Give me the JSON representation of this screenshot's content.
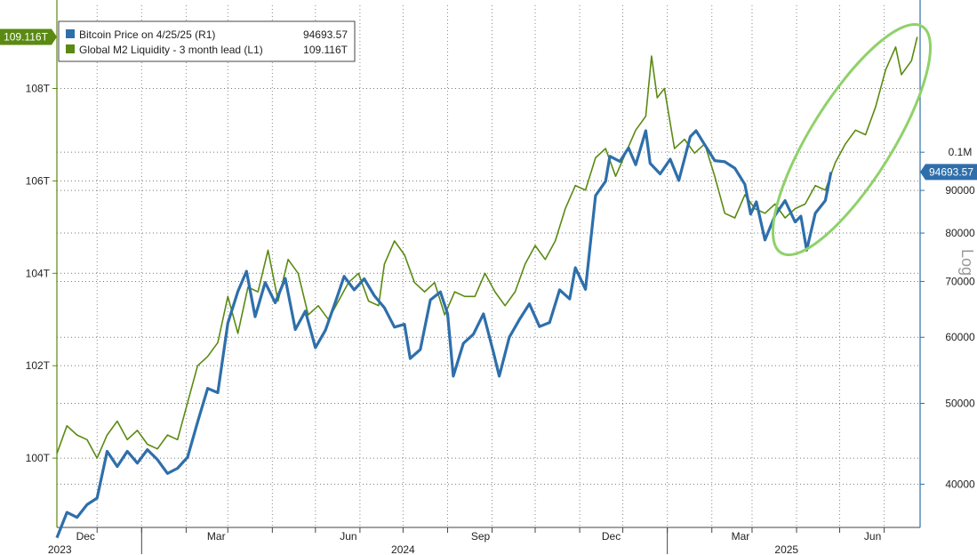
{
  "chart_data": {
    "type": "line",
    "title": "",
    "legend_placement": "top-left",
    "grid": true,
    "colors": {
      "btc": "#2e6fab",
      "m2": "#5a8a12",
      "ellipse": "#8fd16a"
    },
    "left_axis": {
      "label": "",
      "range": [
        98.5,
        109.8
      ],
      "ticks": [
        100,
        102,
        104,
        106,
        108
      ],
      "tick_labels": [
        "100T",
        "102T",
        "104T",
        "106T",
        "108T"
      ],
      "current_label": "109.116T",
      "current_value": 109.116
    },
    "right_axis": {
      "label": "Log",
      "scale": "log",
      "range": [
        35500,
        150000
      ],
      "ticks": [
        40000,
        50000,
        60000,
        70000,
        80000,
        90000,
        100000
      ],
      "tick_labels": [
        "40000",
        "50000",
        "60000",
        "70000",
        "80000",
        "90000",
        "0.1M"
      ],
      "current_label": "94693.57",
      "current_value": 94693.57
    },
    "x_axis": {
      "month_labels": [
        "Dec",
        "Mar",
        "Jun",
        "Sep",
        "Dec",
        "Mar",
        "Jun"
      ],
      "month_dates": [
        "2023-12-01",
        "2024-03-01",
        "2024-06-01",
        "2024-09-01",
        "2024-12-01",
        "2025-03-01",
        "2025-06-01"
      ],
      "year_labels": [
        "2023",
        "2024",
        "2025"
      ],
      "year_dates": [
        "2023-11-05",
        "2024-07-01",
        "2025-03-25"
      ],
      "start": "2023-11-03",
      "end": "2025-06-26"
    },
    "series": [
      {
        "name": "Bitcoin Price on 4/25/25 (R1)",
        "legend_value": "94693.57",
        "axis": "right",
        "points": [
          [
            "2023-11-03",
            34500
          ],
          [
            "2023-11-10",
            37000
          ],
          [
            "2023-11-17",
            36500
          ],
          [
            "2023-11-24",
            37800
          ],
          [
            "2023-12-01",
            38500
          ],
          [
            "2023-12-08",
            43800
          ],
          [
            "2023-12-15",
            42000
          ],
          [
            "2023-12-22",
            43800
          ],
          [
            "2023-12-29",
            42400
          ],
          [
            "2024-01-05",
            44000
          ],
          [
            "2024-01-12",
            42800
          ],
          [
            "2024-01-19",
            41200
          ],
          [
            "2024-01-26",
            41800
          ],
          [
            "2024-02-02",
            43100
          ],
          [
            "2024-02-09",
            47500
          ],
          [
            "2024-02-16",
            52100
          ],
          [
            "2024-02-23",
            51500
          ],
          [
            "2024-03-01",
            62400
          ],
          [
            "2024-03-08",
            68100
          ],
          [
            "2024-03-14",
            72000
          ],
          [
            "2024-03-20",
            63500
          ],
          [
            "2024-03-27",
            69800
          ],
          [
            "2024-04-03",
            66000
          ],
          [
            "2024-04-10",
            70600
          ],
          [
            "2024-04-17",
            61300
          ],
          [
            "2024-04-24",
            64500
          ],
          [
            "2024-05-01",
            58300
          ],
          [
            "2024-05-08",
            61200
          ],
          [
            "2024-05-15",
            66200
          ],
          [
            "2024-05-21",
            71000
          ],
          [
            "2024-05-28",
            68400
          ],
          [
            "2024-06-04",
            70500
          ],
          [
            "2024-06-11",
            67300
          ],
          [
            "2024-06-18",
            65100
          ],
          [
            "2024-06-25",
            61700
          ],
          [
            "2024-07-02",
            62200
          ],
          [
            "2024-07-06",
            56600
          ],
          [
            "2024-07-13",
            58000
          ],
          [
            "2024-07-20",
            66500
          ],
          [
            "2024-07-27",
            68000
          ],
          [
            "2024-08-01",
            64000
          ],
          [
            "2024-08-05",
            53900
          ],
          [
            "2024-08-12",
            59000
          ],
          [
            "2024-08-19",
            60500
          ],
          [
            "2024-08-26",
            64000
          ],
          [
            "2024-09-02",
            57500
          ],
          [
            "2024-09-06",
            53900
          ],
          [
            "2024-09-13",
            60000
          ],
          [
            "2024-09-20",
            63000
          ],
          [
            "2024-09-27",
            65800
          ],
          [
            "2024-10-04",
            61800
          ],
          [
            "2024-10-11",
            62500
          ],
          [
            "2024-10-18",
            68400
          ],
          [
            "2024-10-25",
            66700
          ],
          [
            "2024-10-29",
            72700
          ],
          [
            "2024-11-05",
            68500
          ],
          [
            "2024-11-08",
            76500
          ],
          [
            "2024-11-12",
            88700
          ],
          [
            "2024-11-19",
            92300
          ],
          [
            "2024-11-22",
            98900
          ],
          [
            "2024-11-29",
            97500
          ],
          [
            "2024-12-05",
            101200
          ],
          [
            "2024-12-10",
            96600
          ],
          [
            "2024-12-17",
            106100
          ],
          [
            "2024-12-20",
            97000
          ],
          [
            "2024-12-27",
            94200
          ],
          [
            "2025-01-03",
            98100
          ],
          [
            "2025-01-09",
            92500
          ],
          [
            "2025-01-17",
            104400
          ],
          [
            "2025-01-21",
            106100
          ],
          [
            "2025-01-27",
            102100
          ],
          [
            "2025-02-03",
            97700
          ],
          [
            "2025-02-10",
            97400
          ],
          [
            "2025-02-17",
            95700
          ],
          [
            "2025-02-24",
            91500
          ],
          [
            "2025-02-28",
            84300
          ],
          [
            "2025-03-04",
            87200
          ],
          [
            "2025-03-10",
            78500
          ],
          [
            "2025-03-17",
            84000
          ],
          [
            "2025-03-24",
            87500
          ],
          [
            "2025-03-31",
            82500
          ],
          [
            "2025-04-04",
            83800
          ],
          [
            "2025-04-08",
            76300
          ],
          [
            "2025-04-14",
            84500
          ],
          [
            "2025-04-21",
            87500
          ],
          [
            "2025-04-25",
            94693.57
          ]
        ]
      },
      {
        "name": "Global M2 Liquidity - 3 month lead (L1)",
        "legend_value": "109.116T",
        "axis": "left",
        "points": [
          [
            "2023-11-03",
            100.1
          ],
          [
            "2023-11-10",
            100.7
          ],
          [
            "2023-11-17",
            100.5
          ],
          [
            "2023-11-24",
            100.4
          ],
          [
            "2023-12-01",
            100.0
          ],
          [
            "2023-12-08",
            100.5
          ],
          [
            "2023-12-15",
            100.8
          ],
          [
            "2023-12-22",
            100.4
          ],
          [
            "2023-12-29",
            100.6
          ],
          [
            "2024-01-05",
            100.3
          ],
          [
            "2024-01-12",
            100.2
          ],
          [
            "2024-01-19",
            100.5
          ],
          [
            "2024-01-26",
            100.4
          ],
          [
            "2024-02-02",
            101.2
          ],
          [
            "2024-02-09",
            102.0
          ],
          [
            "2024-02-16",
            102.2
          ],
          [
            "2024-02-23",
            102.5
          ],
          [
            "2024-03-01",
            103.5
          ],
          [
            "2024-03-08",
            102.7
          ],
          [
            "2024-03-15",
            103.7
          ],
          [
            "2024-03-22",
            103.6
          ],
          [
            "2024-03-29",
            104.5
          ],
          [
            "2024-04-05",
            103.4
          ],
          [
            "2024-04-12",
            104.3
          ],
          [
            "2024-04-19",
            104.0
          ],
          [
            "2024-04-26",
            103.1
          ],
          [
            "2024-05-03",
            103.3
          ],
          [
            "2024-05-10",
            103.0
          ],
          [
            "2024-05-17",
            103.4
          ],
          [
            "2024-05-24",
            103.8
          ],
          [
            "2024-05-31",
            104.0
          ],
          [
            "2024-06-07",
            103.4
          ],
          [
            "2024-06-14",
            103.3
          ],
          [
            "2024-06-18",
            104.2
          ],
          [
            "2024-06-25",
            104.7
          ],
          [
            "2024-07-02",
            104.4
          ],
          [
            "2024-07-09",
            103.8
          ],
          [
            "2024-07-16",
            103.6
          ],
          [
            "2024-07-23",
            103.8
          ],
          [
            "2024-07-30",
            103.1
          ],
          [
            "2024-08-06",
            103.6
          ],
          [
            "2024-08-13",
            103.5
          ],
          [
            "2024-08-20",
            103.5
          ],
          [
            "2024-08-27",
            104.0
          ],
          [
            "2024-09-03",
            103.6
          ],
          [
            "2024-09-10",
            103.3
          ],
          [
            "2024-09-17",
            103.6
          ],
          [
            "2024-09-24",
            104.2
          ],
          [
            "2024-10-01",
            104.6
          ],
          [
            "2024-10-08",
            104.3
          ],
          [
            "2024-10-15",
            104.7
          ],
          [
            "2024-10-22",
            105.4
          ],
          [
            "2024-10-29",
            105.9
          ],
          [
            "2024-11-05",
            105.8
          ],
          [
            "2024-11-12",
            106.5
          ],
          [
            "2024-11-19",
            106.7
          ],
          [
            "2024-11-26",
            106.1
          ],
          [
            "2024-12-03",
            106.6
          ],
          [
            "2024-12-10",
            107.1
          ],
          [
            "2024-12-17",
            107.4
          ],
          [
            "2024-12-21",
            108.7
          ],
          [
            "2024-12-25",
            107.8
          ],
          [
            "2024-12-30",
            108.0
          ],
          [
            "2025-01-06",
            106.7
          ],
          [
            "2025-01-13",
            106.9
          ],
          [
            "2025-01-20",
            106.6
          ],
          [
            "2025-01-27",
            106.8
          ],
          [
            "2025-02-03",
            106.1
          ],
          [
            "2025-02-10",
            105.3
          ],
          [
            "2025-02-17",
            105.2
          ],
          [
            "2025-02-24",
            105.7
          ],
          [
            "2025-03-03",
            105.4
          ],
          [
            "2025-03-10",
            105.3
          ],
          [
            "2025-03-17",
            105.5
          ],
          [
            "2025-03-24",
            105.2
          ],
          [
            "2025-03-31",
            105.4
          ],
          [
            "2025-04-07",
            105.5
          ],
          [
            "2025-04-14",
            105.9
          ],
          [
            "2025-04-21",
            105.8
          ],
          [
            "2025-04-28",
            106.4
          ],
          [
            "2025-05-05",
            106.8
          ],
          [
            "2025-05-12",
            107.1
          ],
          [
            "2025-05-19",
            107.0
          ],
          [
            "2025-05-26",
            107.6
          ],
          [
            "2025-06-02",
            108.4
          ],
          [
            "2025-06-09",
            108.9
          ],
          [
            "2025-06-13",
            108.3
          ],
          [
            "2025-06-20",
            108.6
          ],
          [
            "2025-06-24",
            109.116
          ]
        ]
      }
    ]
  }
}
